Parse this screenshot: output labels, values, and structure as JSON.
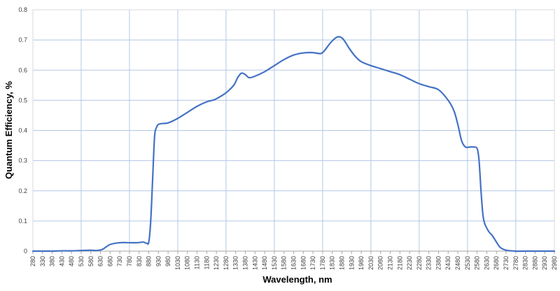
{
  "chart_data": {
    "type": "line",
    "title": "",
    "xlabel": "Wavelength, nm",
    "ylabel": "Quantum  Efficiency, %",
    "xlim": [
      280,
      2980
    ],
    "ylim": [
      0,
      0.8
    ],
    "x_ticks": [
      280,
      330,
      380,
      430,
      480,
      530,
      580,
      630,
      680,
      730,
      780,
      830,
      880,
      930,
      980,
      1030,
      1080,
      1130,
      1180,
      1230,
      1280,
      1330,
      1380,
      1430,
      1480,
      1530,
      1580,
      1630,
      1680,
      1730,
      1780,
      1830,
      1880,
      1930,
      1980,
      2030,
      2080,
      2130,
      2180,
      2230,
      2280,
      2330,
      2380,
      2430,
      2480,
      2530,
      2580,
      2630,
      2680,
      2730,
      2780,
      2830,
      2880,
      2930,
      2980
    ],
    "y_ticks": [
      "0",
      "0.1",
      "0.2",
      "0.3",
      "0.4",
      "0.5",
      "0.6",
      "0.7",
      "0.8"
    ],
    "x_gridlines": [
      530,
      780,
      1030,
      1280,
      1530,
      1780,
      2030,
      2280,
      2530,
      2780
    ],
    "grid": true,
    "legend": "none",
    "line_color": "#4472C4",
    "grid_color": "#B4C7E7",
    "series": [
      {
        "x": [
          280,
          330,
          380,
          430,
          480,
          530,
          580,
          610,
          640,
          680,
          730,
          780,
          820,
          850,
          860,
          870,
          880,
          890,
          900,
          910,
          920,
          930,
          950,
          980,
          1030,
          1080,
          1130,
          1180,
          1210,
          1230,
          1280,
          1320,
          1340,
          1360,
          1380,
          1400,
          1430,
          1480,
          1530,
          1580,
          1630,
          1680,
          1730,
          1770,
          1790,
          1820,
          1850,
          1870,
          1890,
          1920,
          1950,
          1980,
          2030,
          2080,
          2130,
          2180,
          2230,
          2280,
          2330,
          2380,
          2430,
          2460,
          2480,
          2500,
          2520,
          2540,
          2560,
          2580,
          2590,
          2600,
          2610,
          2620,
          2640,
          2660,
          2680,
          2700,
          2730,
          2780,
          2830,
          2880,
          2930,
          2980
        ],
        "values": [
          0,
          0,
          0,
          0.001,
          0.001,
          0.002,
          0.003,
          0.002,
          0.006,
          0.022,
          0.028,
          0.028,
          0.028,
          0.03,
          0.028,
          0.026,
          0.03,
          0.1,
          0.24,
          0.38,
          0.41,
          0.42,
          0.423,
          0.425,
          0.44,
          0.46,
          0.48,
          0.495,
          0.5,
          0.505,
          0.525,
          0.55,
          0.575,
          0.59,
          0.585,
          0.575,
          0.58,
          0.595,
          0.615,
          0.635,
          0.65,
          0.657,
          0.658,
          0.655,
          0.665,
          0.69,
          0.708,
          0.71,
          0.7,
          0.67,
          0.645,
          0.628,
          0.615,
          0.605,
          0.595,
          0.585,
          0.57,
          0.555,
          0.545,
          0.535,
          0.5,
          0.465,
          0.42,
          0.365,
          0.345,
          0.345,
          0.345,
          0.34,
          0.3,
          0.2,
          0.12,
          0.09,
          0.065,
          0.05,
          0.03,
          0.012,
          0.003,
          0,
          0,
          0,
          0,
          0
        ]
      }
    ]
  }
}
